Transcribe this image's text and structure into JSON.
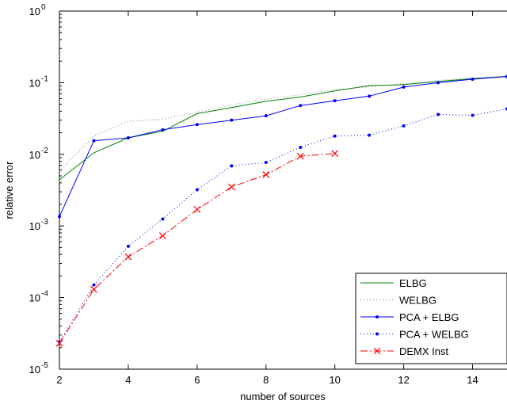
{
  "chart_data": {
    "type": "line",
    "title": "",
    "xlabel": "number of sources",
    "ylabel": "relative error",
    "xlim": [
      2,
      15
    ],
    "ylim": [
      1e-05,
      1
    ],
    "yscale": "log",
    "grid": false,
    "legend_position": "bottom-right",
    "x_ticks": [
      2,
      4,
      6,
      8,
      10,
      12,
      14
    ],
    "x_tick_labels": [
      "2",
      "4",
      "6",
      "8",
      "10",
      "12",
      "14"
    ],
    "y_ticks": [
      1e-05,
      0.0001,
      0.001,
      0.01,
      0.1,
      1
    ],
    "y_tick_labels": [
      {
        "base": "10",
        "exp": "-5"
      },
      {
        "base": "10",
        "exp": "-4"
      },
      {
        "base": "10",
        "exp": "-3"
      },
      {
        "base": "10",
        "exp": "-2"
      },
      {
        "base": "10",
        "exp": "-1"
      },
      {
        "base": "10",
        "exp": "0"
      }
    ],
    "series": [
      {
        "name": "ELBG",
        "color": "#008000",
        "dash": "solid",
        "marker": "none",
        "x": [
          2,
          3,
          4,
          5,
          6,
          7,
          8,
          9,
          10,
          11,
          12,
          13,
          14,
          15
        ],
        "y": [
          0.0044,
          0.0105,
          0.017,
          0.021,
          0.037,
          0.045,
          0.055,
          0.063,
          0.077,
          0.091,
          0.094,
          0.104,
          0.114,
          0.123
        ]
      },
      {
        "name": "WELBG",
        "color": "#808080",
        "dash": "dotted",
        "marker": "none",
        "x": [
          2,
          3,
          4,
          5,
          6,
          7,
          8,
          9,
          10,
          11,
          12,
          13,
          14,
          15
        ],
        "y": [
          0.0058,
          0.018,
          0.029,
          0.031,
          0.039,
          0.049,
          0.059,
          0.068,
          0.08,
          0.088,
          0.097,
          0.108,
          0.117,
          0.124
        ]
      },
      {
        "name": "PCA + ELBG",
        "color": "#0000ff",
        "dash": "solid",
        "marker": "dot",
        "x": [
          2,
          3,
          4,
          5,
          6,
          7,
          8,
          9,
          10,
          11,
          12,
          13,
          14,
          15
        ],
        "y": [
          0.00135,
          0.0155,
          0.017,
          0.022,
          0.026,
          0.03,
          0.0345,
          0.048,
          0.056,
          0.065,
          0.087,
          0.1,
          0.112,
          0.122
        ]
      },
      {
        "name": "PCA + WELBG",
        "color": "#0000ff",
        "dash": "dotted",
        "marker": "dot",
        "x": [
          2,
          3,
          4,
          5,
          6,
          7,
          8,
          9,
          10,
          11,
          12,
          13,
          14,
          15
        ],
        "y": [
          2.4e-05,
          0.00015,
          0.00052,
          0.00125,
          0.0032,
          0.0069,
          0.0077,
          0.0125,
          0.018,
          0.0185,
          0.025,
          0.036,
          0.035,
          0.043
        ]
      },
      {
        "name": "DEMX Inst",
        "color": "#ff0000",
        "dash": "dashdot",
        "marker": "x",
        "x": [
          2,
          3,
          4,
          5,
          6,
          7,
          8,
          9,
          10
        ],
        "y": [
          2.3e-05,
          0.00013,
          0.00037,
          0.00073,
          0.0017,
          0.0035,
          0.0052,
          0.0094,
          0.0103
        ]
      }
    ]
  }
}
